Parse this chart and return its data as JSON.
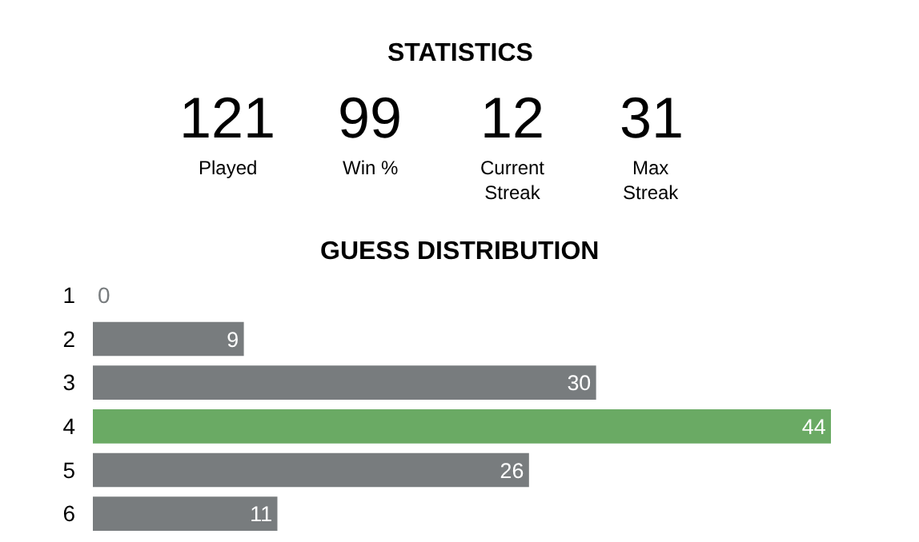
{
  "chart_data": [
    {
      "type": "other",
      "title": "STATISTICS",
      "annotations": [
        "121",
        "Played",
        "99",
        "Win %",
        "12",
        "Current\nStreak",
        "31",
        "Max\nStreak"
      ]
    },
    {
      "type": "bar",
      "orientation": "horizontal",
      "title": "GUESS DISTRIBUTION",
      "categories": [
        "1",
        "2",
        "3",
        "4",
        "5",
        "6"
      ],
      "values": [
        0,
        9,
        30,
        44,
        26,
        11
      ],
      "colors": [
        "#787c7e",
        "#787c7e",
        "#787c7e",
        "#6aaa64",
        "#787c7e",
        "#787c7e"
      ],
      "data_labels": true
    }
  ]
}
